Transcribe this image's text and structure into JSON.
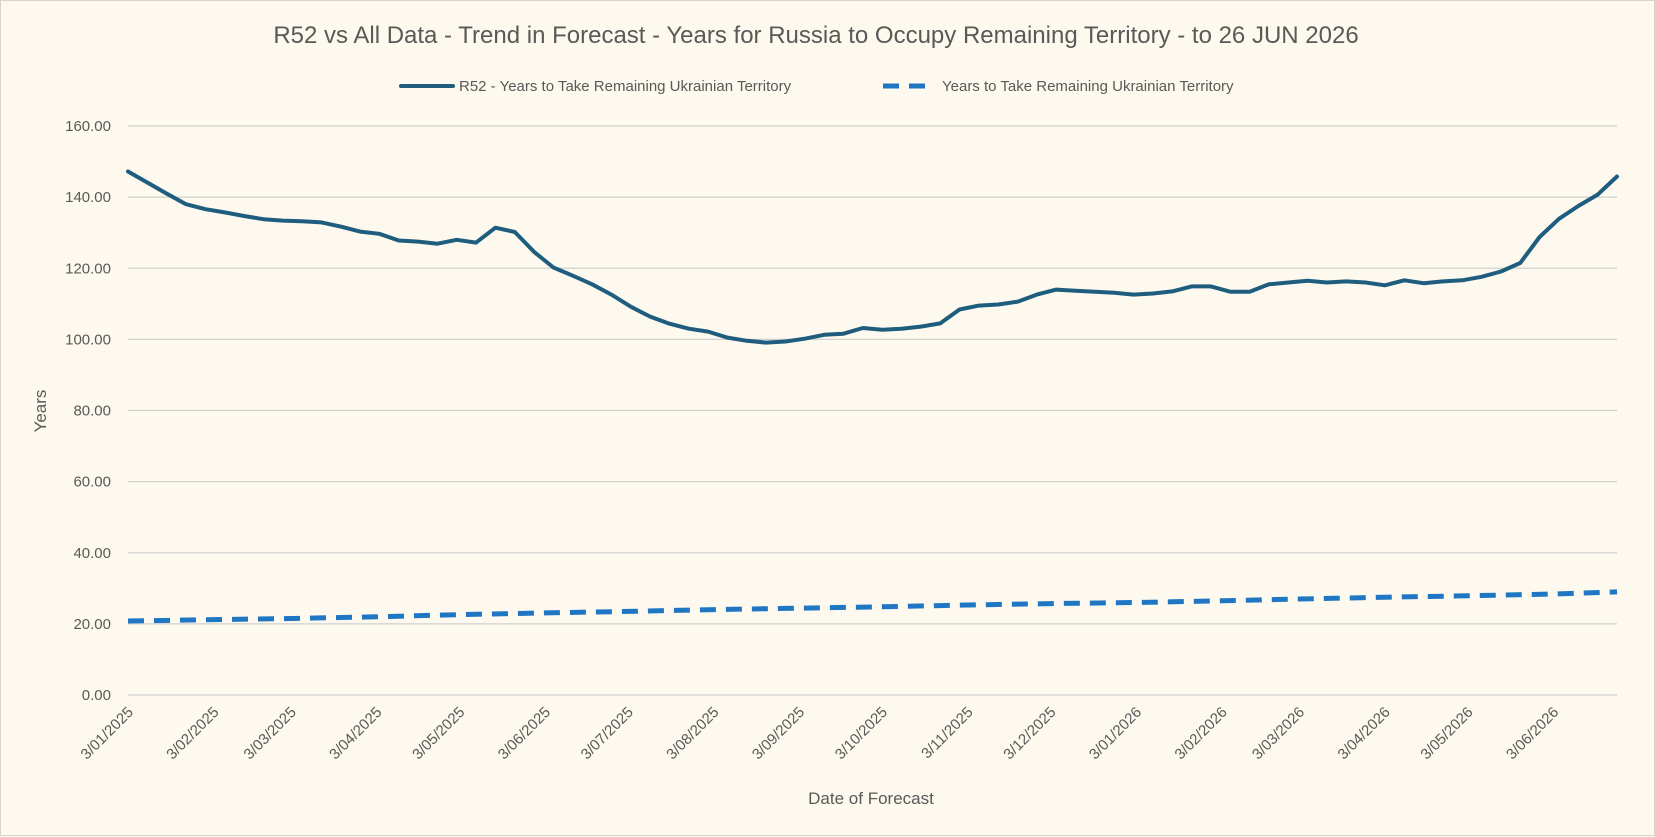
{
  "chart_data": {
    "type": "line",
    "title": "R52 vs All Data  - Trend in Forecast - Years for Russia to Occupy Remaining Territory - to 26 JUN 2026",
    "xlabel": "Date of Forecast",
    "ylabel": "Years",
    "ylim": [
      0,
      160
    ],
    "y_ticks": [
      "0.00",
      "20.00",
      "40.00",
      "60.00",
      "80.00",
      "100.00",
      "120.00",
      "140.00",
      "160.00"
    ],
    "x_ticks": [
      "3/01/2025",
      "3/02/2025",
      "3/03/2025",
      "3/04/2025",
      "3/05/2025",
      "3/06/2025",
      "3/07/2025",
      "3/08/2025",
      "3/09/2025",
      "3/10/2025",
      "3/11/2025",
      "3/12/2025",
      "3/01/2026",
      "3/02/2026",
      "3/03/2026",
      "3/04/2026",
      "3/05/2026",
      "3/06/2026"
    ],
    "x_range": [
      "2025-01-03",
      "2026-06-26"
    ],
    "grid": true,
    "legend_position": "top",
    "series": [
      {
        "name": "R52 - Years to Take Remaining Ukrainian Territory",
        "style": "solid",
        "color": "#1f5d7e",
        "points": [
          [
            "2025-01-03",
            147.2
          ],
          [
            "2025-01-10",
            144.1
          ],
          [
            "2025-01-17",
            141.0
          ],
          [
            "2025-01-24",
            138.0
          ],
          [
            "2025-01-31",
            136.6
          ],
          [
            "2025-02-07",
            135.7
          ],
          [
            "2025-02-14",
            134.7
          ],
          [
            "2025-02-21",
            133.8
          ],
          [
            "2025-02-28",
            133.4
          ],
          [
            "2025-03-07",
            133.2
          ],
          [
            "2025-03-14",
            132.9
          ],
          [
            "2025-03-21",
            131.7
          ],
          [
            "2025-03-28",
            130.3
          ],
          [
            "2025-04-04",
            129.7
          ],
          [
            "2025-04-11",
            127.8
          ],
          [
            "2025-04-18",
            127.5
          ],
          [
            "2025-04-25",
            126.9
          ],
          [
            "2025-05-02",
            128.0
          ],
          [
            "2025-05-09",
            127.2
          ],
          [
            "2025-05-16",
            131.4
          ],
          [
            "2025-05-23",
            130.2
          ],
          [
            "2025-05-30",
            124.6
          ],
          [
            "2025-06-06",
            120.2
          ],
          [
            "2025-06-13",
            117.9
          ],
          [
            "2025-06-20",
            115.5
          ],
          [
            "2025-06-27",
            112.6
          ],
          [
            "2025-07-04",
            109.2
          ],
          [
            "2025-07-11",
            106.4
          ],
          [
            "2025-07-18",
            104.4
          ],
          [
            "2025-07-25",
            103.0
          ],
          [
            "2025-08-01",
            102.2
          ],
          [
            "2025-08-08",
            100.5
          ],
          [
            "2025-08-15",
            99.6
          ],
          [
            "2025-08-22",
            99.1
          ],
          [
            "2025-08-29",
            99.4
          ],
          [
            "2025-09-05",
            100.2
          ],
          [
            "2025-09-12",
            101.3
          ],
          [
            "2025-09-19",
            101.6
          ],
          [
            "2025-09-26",
            103.2
          ],
          [
            "2025-10-03",
            102.7
          ],
          [
            "2025-10-10",
            103.0
          ],
          [
            "2025-10-17",
            103.6
          ],
          [
            "2025-10-24",
            104.5
          ],
          [
            "2025-10-31",
            108.4
          ],
          [
            "2025-11-07",
            109.5
          ],
          [
            "2025-11-14",
            109.8
          ],
          [
            "2025-11-21",
            110.6
          ],
          [
            "2025-11-28",
            112.6
          ],
          [
            "2025-12-05",
            114.0
          ],
          [
            "2025-12-12",
            113.7
          ],
          [
            "2025-12-19",
            113.4
          ],
          [
            "2025-12-26",
            113.1
          ],
          [
            "2026-01-02",
            112.6
          ],
          [
            "2026-01-09",
            112.9
          ],
          [
            "2026-01-16",
            113.5
          ],
          [
            "2026-01-23",
            114.9
          ],
          [
            "2026-01-30",
            114.9
          ],
          [
            "2026-02-06",
            113.4
          ],
          [
            "2026-02-13",
            113.4
          ],
          [
            "2026-02-20",
            115.5
          ],
          [
            "2026-02-27",
            116.0
          ],
          [
            "2026-03-06",
            116.5
          ],
          [
            "2026-03-13",
            116.0
          ],
          [
            "2026-03-20",
            116.3
          ],
          [
            "2026-03-27",
            116.0
          ],
          [
            "2026-04-03",
            115.2
          ],
          [
            "2026-04-10",
            116.6
          ],
          [
            "2026-04-17",
            115.8
          ],
          [
            "2026-04-24",
            116.3
          ],
          [
            "2026-05-01",
            116.6
          ],
          [
            "2026-05-08",
            117.6
          ],
          [
            "2026-05-15",
            119.1
          ],
          [
            "2026-05-22",
            121.5
          ],
          [
            "2026-05-29",
            128.8
          ],
          [
            "2026-06-05",
            133.9
          ],
          [
            "2026-06-12",
            137.5
          ],
          [
            "2026-06-19",
            140.7
          ],
          [
            "2026-06-26",
            145.8
          ]
        ]
      },
      {
        "name": "Years to Take Remaining Ukrainian Territory",
        "style": "dashed",
        "color": "#1f77c4",
        "points": [
          [
            "2025-01-03",
            20.8
          ],
          [
            "2025-02-03",
            21.2
          ],
          [
            "2025-03-03",
            21.5
          ],
          [
            "2025-04-03",
            22.0
          ],
          [
            "2025-05-03",
            22.6
          ],
          [
            "2025-06-03",
            23.1
          ],
          [
            "2025-07-03",
            23.5
          ],
          [
            "2025-08-03",
            24.0
          ],
          [
            "2025-09-03",
            24.4
          ],
          [
            "2025-10-03",
            24.8
          ],
          [
            "2025-11-03",
            25.3
          ],
          [
            "2025-12-03",
            25.7
          ],
          [
            "2026-01-03",
            26.0
          ],
          [
            "2026-02-03",
            26.5
          ],
          [
            "2026-03-03",
            27.0
          ],
          [
            "2026-04-03",
            27.5
          ],
          [
            "2026-05-03",
            27.9
          ],
          [
            "2026-06-03",
            28.4
          ],
          [
            "2026-06-26",
            29.0
          ]
        ]
      }
    ]
  }
}
